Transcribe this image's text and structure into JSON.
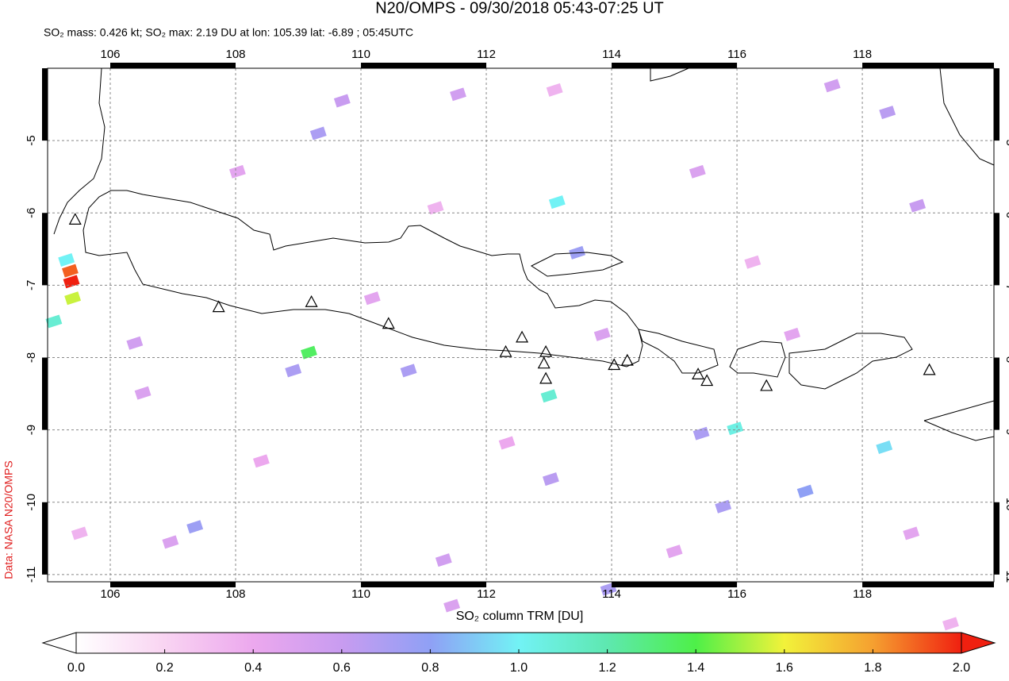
{
  "chart_data": {
    "type": "map",
    "title": "N20/OMPS - 09/30/2018 05:43-07:25 UT",
    "subtitle": "SO₂ mass: 0.426 kt; SO₂ max: 2.19 DU at lon: 105.39 lat: -6.89 ; 05:45UTC",
    "credit": "Data: NASA N20/OMPS",
    "xlim": [
      105,
      120.1
    ],
    "ylim": [
      -11.1,
      -4.0
    ],
    "xticks": [
      106,
      108,
      110,
      112,
      114,
      116,
      118
    ],
    "yticks": [
      -5,
      -6,
      -7,
      -8,
      -9,
      -10,
      -11
    ],
    "grid": true,
    "colorbar": {
      "label": "SO₂ column TRM [DU]",
      "lim": [
        0,
        2
      ],
      "ticks": [
        {
          "value": 0,
          "label": "0.0"
        },
        {
          "value": 0.2,
          "label": "0.2"
        },
        {
          "value": 0.4,
          "label": "0.4"
        },
        {
          "value": 0.6,
          "label": "0.6"
        },
        {
          "value": 0.8,
          "label": "0.8"
        },
        {
          "value": 1.0,
          "label": "1.0"
        },
        {
          "value": 1.2,
          "label": "1.2"
        },
        {
          "value": 1.4,
          "label": "1.4"
        },
        {
          "value": 1.6,
          "label": "1.6"
        },
        {
          "value": 1.8,
          "label": "1.8"
        },
        {
          "value": 2.0,
          "label": "2.0"
        }
      ],
      "colors": [
        "#ffffff",
        "#f9d4f2",
        "#eca8ee",
        "#c89cf0",
        "#8fa0f5",
        "#72f2f5",
        "#5ee8b0",
        "#4ef048",
        "#f2f23a",
        "#f5a030",
        "#f02010"
      ]
    },
    "pixels": {
      "lon": [
        105.38,
        105.36,
        105.4,
        105.3,
        105.1,
        109.17,
        113.13,
        113.0,
        115.97,
        118.35,
        109.32,
        107.35,
        117.09,
        113.45,
        110.76,
        113.95,
        115.78,
        115.43,
        118.4,
        118.88,
        109.7,
        111.55,
        117.52,
        113.03,
        108.92,
        106.39,
        106.52,
        106.96,
        111.32,
        111.45,
        113.85,
        115.37,
        116.88,
        108.03,
        110.18,
        115.0,
        118.78,
        112.33,
        108.41,
        105.51,
        119.41,
        116.25,
        111.19,
        113.09
      ],
      "lat": [
        -6.95,
        -6.8,
        -7.18,
        -6.65,
        -7.5,
        -7.93,
        -5.85,
        -8.53,
        -8.98,
        -9.24,
        -4.9,
        -10.34,
        -9.85,
        -6.55,
        -8.18,
        -11.2,
        -10.06,
        -9.05,
        -4.61,
        -5.9,
        -4.45,
        -4.36,
        -4.24,
        -9.68,
        -8.18,
        -7.8,
        -8.49,
        -10.55,
        -10.8,
        -11.43,
        -7.68,
        -5.43,
        -7.68,
        -5.43,
        -7.18,
        -10.68,
        -10.43,
        -9.18,
        -9.43,
        -10.43,
        -11.68,
        -6.68,
        -5.93,
        -4.3
      ],
      "values": [
        2.1,
        1.9,
        1.55,
        1.0,
        1.1,
        1.35,
        1.0,
        1.1,
        1.05,
        0.95,
        0.7,
        0.75,
        0.8,
        0.75,
        0.7,
        0.7,
        0.7,
        0.7,
        0.65,
        0.6,
        0.6,
        0.55,
        0.55,
        0.65,
        0.7,
        0.55,
        0.5,
        0.5,
        0.55,
        0.5,
        0.5,
        0.5,
        0.45,
        0.45,
        0.45,
        0.45,
        0.45,
        0.4,
        0.4,
        0.35,
        0.35,
        0.35,
        0.35,
        0.35
      ]
    },
    "volcanoes": {
      "lon": [
        105.44,
        107.73,
        109.21,
        110.44,
        112.31,
        112.57,
        112.95,
        112.92,
        112.95,
        114.04,
        114.25,
        115.38,
        115.52,
        116.47,
        119.07
      ],
      "lat": [
        -6.1,
        -7.31,
        -7.24,
        -7.54,
        -7.93,
        -7.73,
        -8.3,
        -8.09,
        -7.93,
        -8.11,
        -8.05,
        -8.24,
        -8.33,
        -8.4,
        -8.18
      ]
    }
  }
}
